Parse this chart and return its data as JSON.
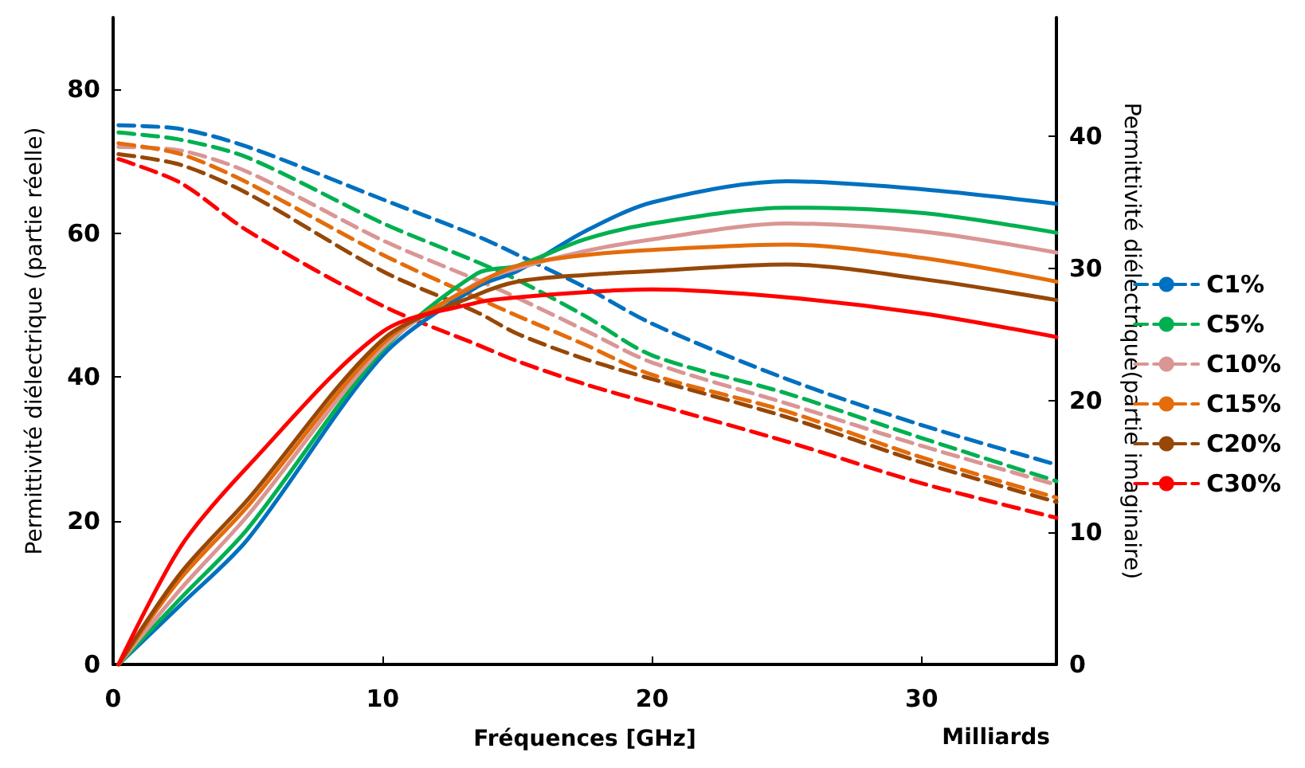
{
  "chart_data": {
    "type": "line",
    "xlabel": "Fréquences [GHz]",
    "ylabel": "Permittivité diélectrique (partie réelle)",
    "y2label": "Permittivité diélectrique(partie imaginaire)",
    "annotations": [
      "Milliards"
    ],
    "xlim": [
      0,
      35
    ],
    "xticks": [
      0,
      10,
      20,
      30
    ],
    "ylim": [
      0,
      90
    ],
    "yticks": [
      0,
      20,
      40,
      60,
      80
    ],
    "y2lim": [
      0,
      49
    ],
    "y2ticks": [
      0,
      10,
      20,
      30,
      40
    ],
    "legend": "right",
    "marker": "none",
    "x": [
      0.2,
      2.5,
      5,
      10,
      13.5,
      15,
      17.5,
      20,
      25,
      30,
      35
    ],
    "series": [
      {
        "name": "C1%",
        "color": "#0070c0",
        "line_style": "dashed",
        "values": [
          75,
          74.5,
          72,
          64.7,
          59.6,
          57,
          52.5,
          47.4,
          39.7,
          33.3,
          27.8
        ]
      },
      {
        "name": "C5%",
        "color": "#00b050",
        "line_style": "dashed",
        "values": [
          74,
          73,
          70.5,
          61.4,
          56,
          53.5,
          48.5,
          43,
          37.7,
          31.5,
          25.5
        ]
      },
      {
        "name": "C10%",
        "color": "#d99694",
        "line_style": "dashed",
        "values": [
          72,
          71.5,
          68.5,
          59,
          53.5,
          51,
          46.5,
          42,
          36.3,
          30.4,
          25
        ]
      },
      {
        "name": "C15%",
        "color": "#e46c0a",
        "line_style": "dashed",
        "values": [
          72.5,
          71,
          67,
          57,
          51,
          48.5,
          44.5,
          40.3,
          35.2,
          28.8,
          23.2
        ]
      },
      {
        "name": "C20%",
        "color": "#974706",
        "line_style": "dashed",
        "values": [
          71,
          69.5,
          65.5,
          54.7,
          49,
          46,
          42.5,
          39.7,
          34.4,
          28.1,
          22.6
        ]
      },
      {
        "name": "C30%",
        "color": "#ff0000",
        "line_style": "dashed",
        "values": [
          70.3,
          67,
          60.3,
          49.9,
          44.5,
          42.2,
          39,
          36.3,
          31,
          25.2,
          20.4
        ]
      },
      {
        "color": "#0070c0",
        "line_style": "solid",
        "axis": "y2",
        "values": [
          0,
          4.5,
          9.5,
          23.4,
          28.6,
          29.8,
          32.8,
          35,
          36.6,
          36,
          34.9
        ]
      },
      {
        "color": "#00b050",
        "line_style": "solid",
        "axis": "y2",
        "values": [
          0,
          5,
          10.3,
          23.8,
          29.6,
          30.2,
          32.2,
          33.4,
          34.6,
          34.2,
          32.7
        ]
      },
      {
        "color": "#d99694",
        "line_style": "solid",
        "axis": "y2",
        "values": [
          0,
          5.7,
          11.3,
          24,
          28.9,
          30,
          31.3,
          32.2,
          33.4,
          32.8,
          31.2
        ]
      },
      {
        "color": "#e46c0a",
        "line_style": "solid",
        "axis": "y2",
        "values": [
          0,
          6.5,
          12,
          24.3,
          28.8,
          30.2,
          31,
          31.4,
          31.8,
          30.8,
          29
        ]
      },
      {
        "color": "#974706",
        "line_style": "solid",
        "axis": "y2",
        "values": [
          0,
          6.9,
          12.5,
          24.6,
          28,
          29,
          29.5,
          29.8,
          30.3,
          29.2,
          27.6
        ]
      },
      {
        "color": "#ff0000",
        "line_style": "solid",
        "axis": "y2",
        "values": [
          0,
          8.9,
          15,
          25.2,
          27.4,
          27.8,
          28.2,
          28.4,
          27.8,
          26.6,
          24.8
        ]
      }
    ]
  }
}
